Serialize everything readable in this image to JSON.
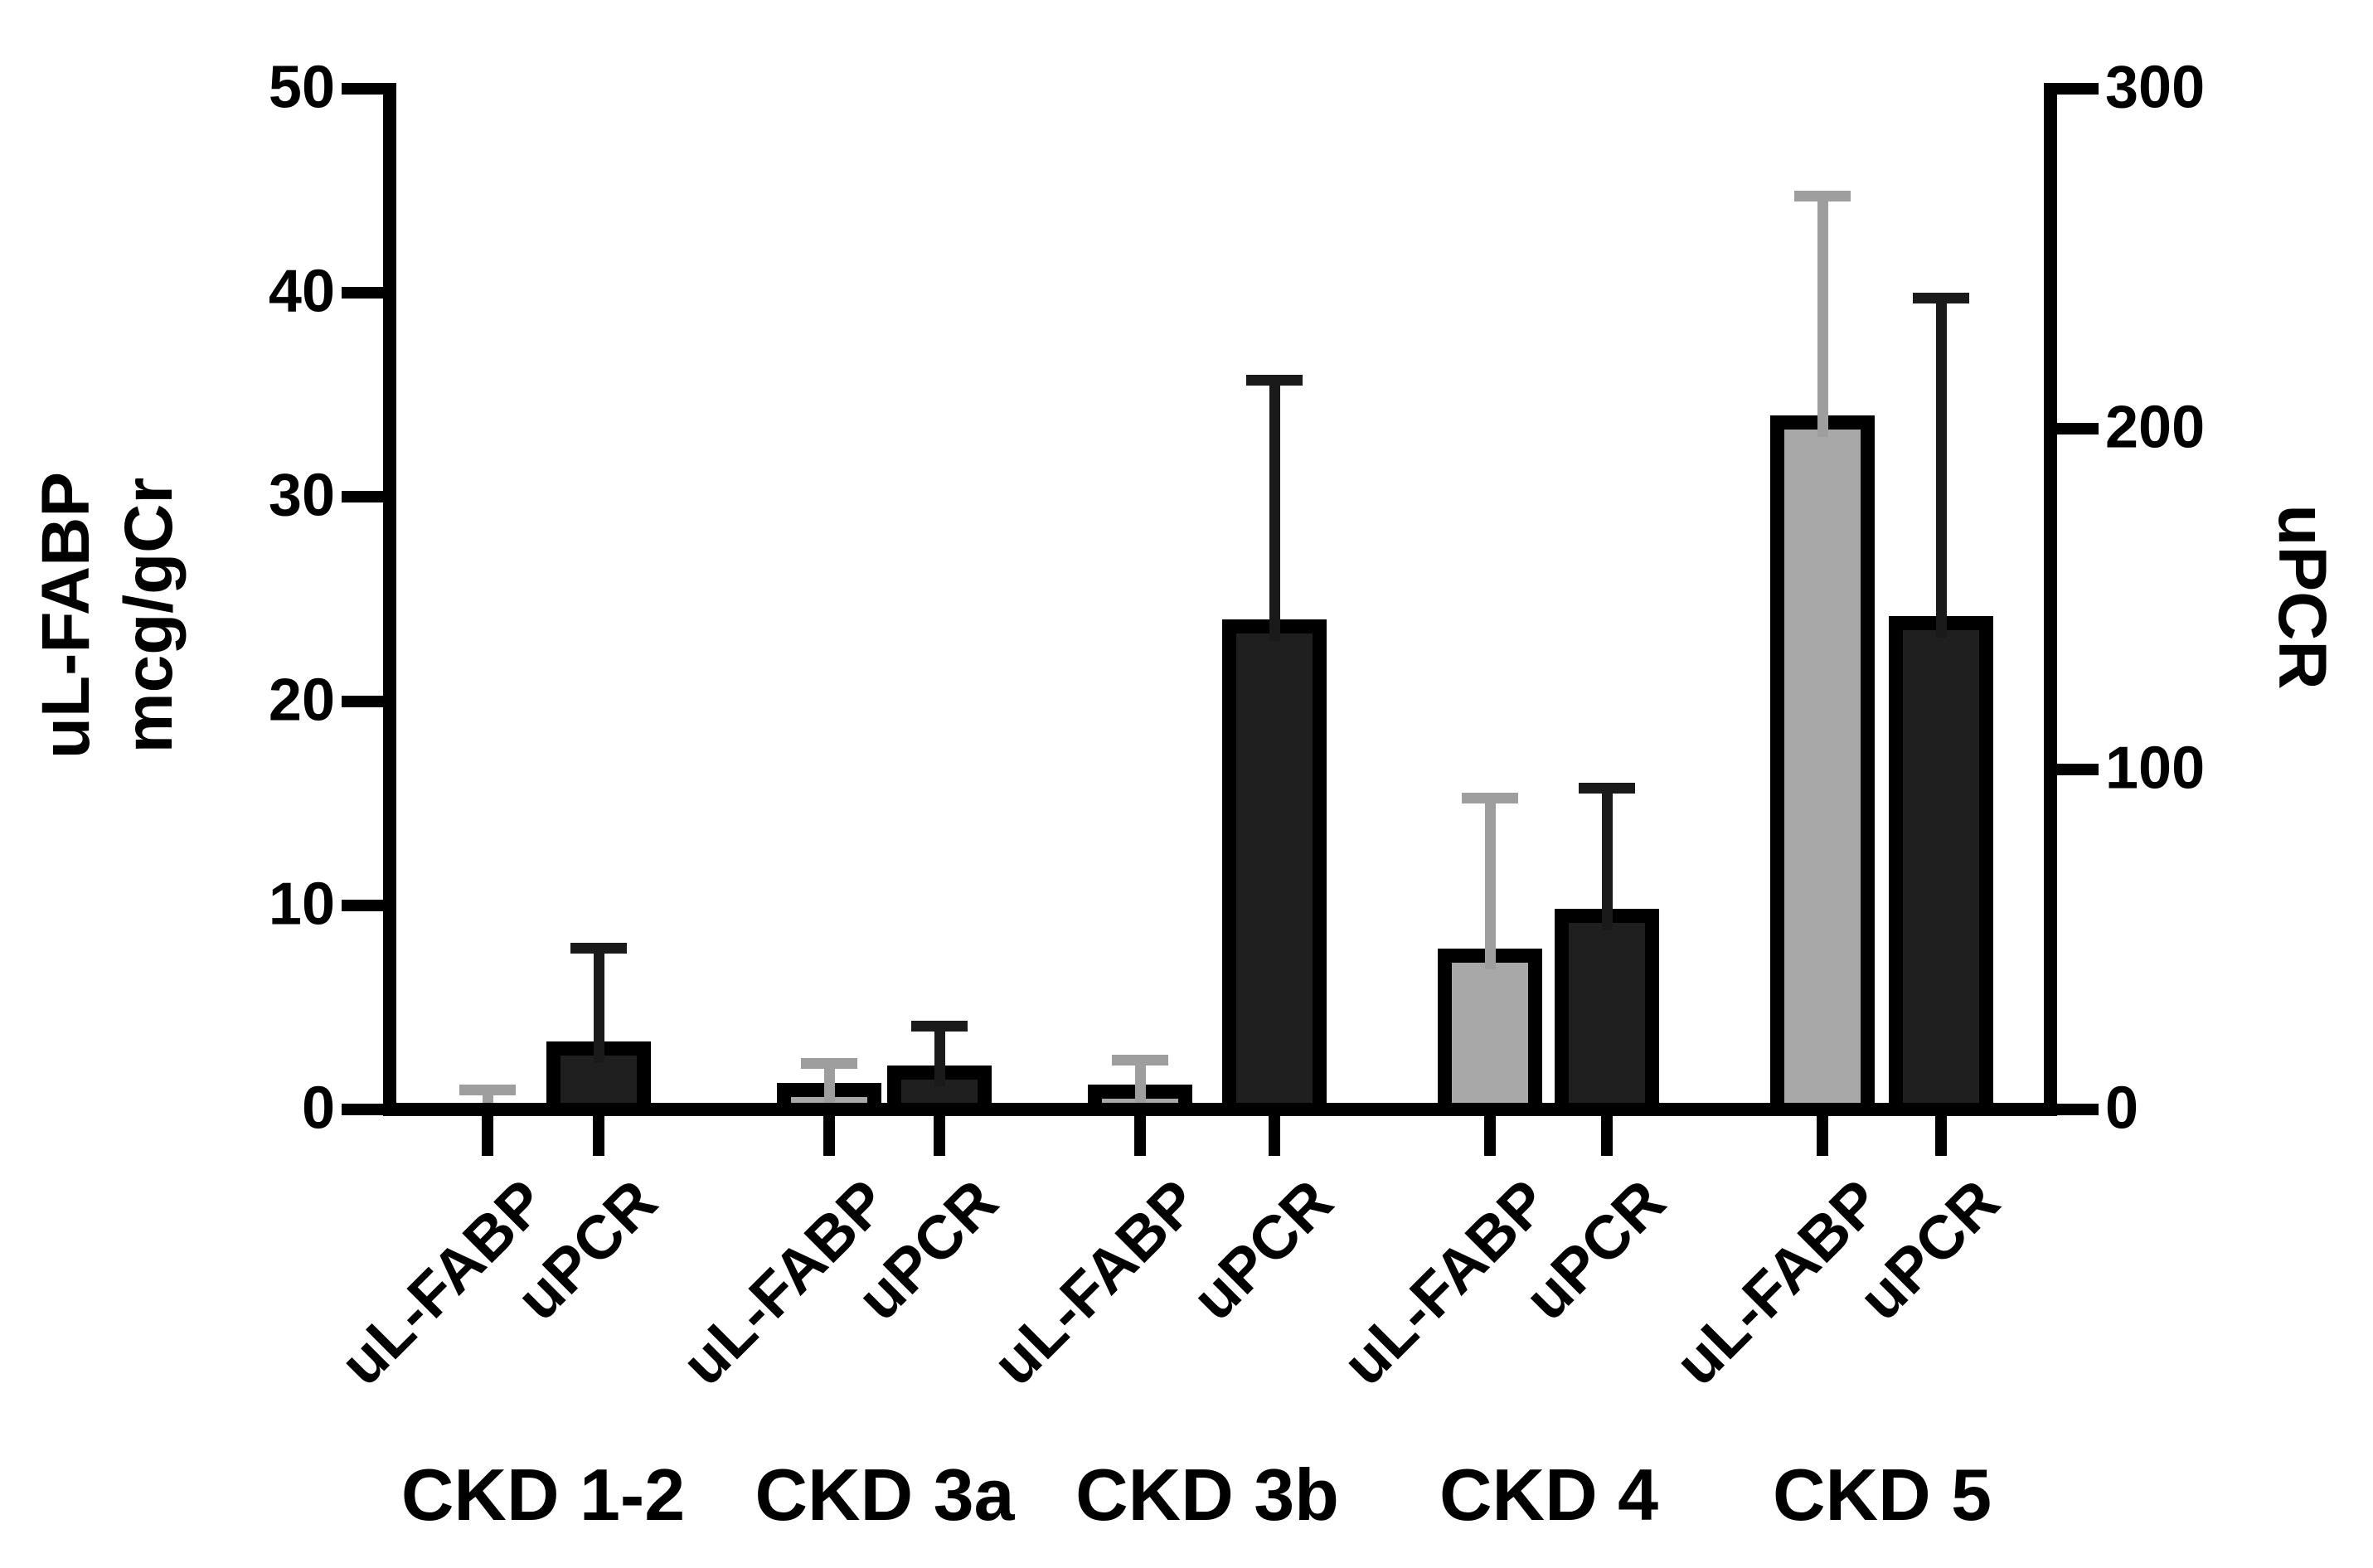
{
  "chart_data": {
    "type": "bar",
    "title": "",
    "categories": [
      "CKD 1-2",
      "CKD 3a",
      "CKD 3b",
      "CKD 4",
      "CKD 5"
    ],
    "bar_tick_labels": [
      "uL-FABP",
      "uPCR"
    ],
    "series": [
      {
        "name": "uL-FABP",
        "axis": "left",
        "values": [
          0.2,
          1.3,
          1.2,
          7.9,
          34
        ],
        "error_top": [
          1.2,
          2.5,
          2.7,
          15.5,
          45
        ],
        "bar_color": "#a8a8a8",
        "error_color": "#9e9e9e"
      },
      {
        "name": "uPCR",
        "axis": "right",
        "values": [
          20,
          13,
          144,
          59,
          145
        ],
        "error_top": [
          49,
          26,
          216,
          96,
          240
        ],
        "bar_color": "#1f1f1f",
        "error_color": "#1a1a1a"
      }
    ],
    "left_axis": {
      "title_line1": "uL-FABP",
      "title_line2": "mcg/gCr",
      "ticks": [
        0,
        10,
        20,
        30,
        40,
        50
      ],
      "range": [
        0,
        50
      ]
    },
    "right_axis": {
      "title": "uPCR",
      "ticks": [
        0,
        100,
        200,
        300
      ],
      "range": [
        0,
        300
      ]
    },
    "legend_position": "none",
    "grid": false,
    "background_color": "#ffffff",
    "axis_color": "#000000"
  }
}
